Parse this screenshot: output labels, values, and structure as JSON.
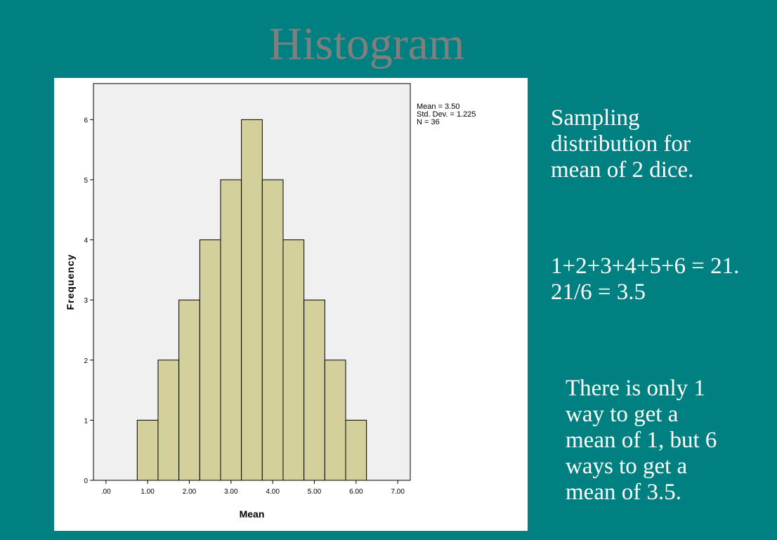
{
  "slide": {
    "title": "Histogram",
    "notes": [
      "Sampling\ndistribution for\nmean of 2 dice.",
      "1+2+3+4+5+6 = 21.\n21/6 = 3.5",
      "There is only 1\nway to get a\nmean of 1, but 6\nways to get a\nmean of 3.5."
    ]
  },
  "chart_data": {
    "type": "bar",
    "title": "",
    "xlabel": "Mean",
    "ylabel": "Frequency",
    "x_tick_labels": [
      ".00",
      "1.00",
      "2.00",
      "3.00",
      "4.00",
      "5.00",
      "6.00",
      "7.00"
    ],
    "x_ticks": [
      0,
      1,
      2,
      3,
      4,
      5,
      6,
      7
    ],
    "y_ticks": [
      0,
      1,
      2,
      3,
      4,
      5,
      6
    ],
    "xlim": [
      -0.3,
      7.3
    ],
    "ylim": [
      0,
      6.6
    ],
    "bin_width": 0.5,
    "bins": [
      {
        "x": 1.0,
        "count": 1
      },
      {
        "x": 1.5,
        "count": 2
      },
      {
        "x": 2.0,
        "count": 3
      },
      {
        "x": 2.5,
        "count": 4
      },
      {
        "x": 3.0,
        "count": 5
      },
      {
        "x": 3.5,
        "count": 6
      },
      {
        "x": 4.0,
        "count": 5
      },
      {
        "x": 4.5,
        "count": 4
      },
      {
        "x": 5.0,
        "count": 3
      },
      {
        "x": 5.5,
        "count": 2
      },
      {
        "x": 6.0,
        "count": 1
      }
    ],
    "stats": [
      "Mean = 3.50",
      "Std. Dev. = 1.225",
      "N = 36"
    ],
    "colors": {
      "bar_fill": "#d4d09c",
      "plot_bg": "#f0f0f0",
      "bar_stroke": "#000000"
    }
  }
}
